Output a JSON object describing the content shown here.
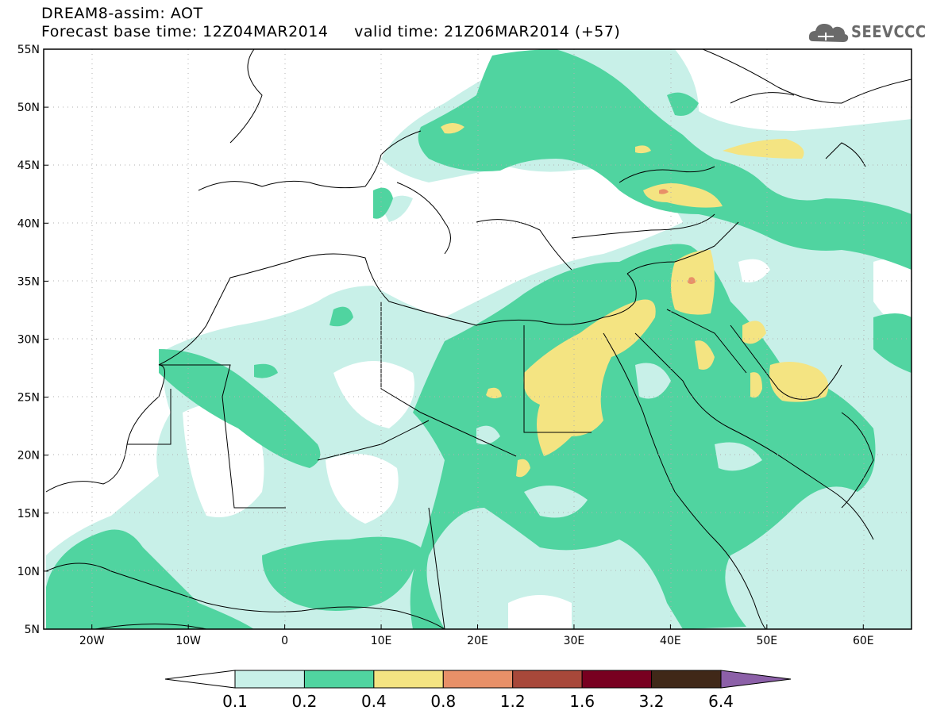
{
  "header": {
    "title": "DREAM8-assim: AOT",
    "base_time_label": "Forecast base time: 12Z04MAR2014",
    "valid_time_label": "valid time: 21Z06MAR2014 (+57)"
  },
  "logo": {
    "text": "SEEVCCC",
    "icon": "cloud-icon"
  },
  "map": {
    "lat_labels": [
      "55N",
      "50N",
      "45N",
      "40N",
      "35N",
      "30N",
      "25N",
      "20N",
      "15N",
      "10N",
      "5N"
    ],
    "lon_labels": [
      "20W",
      "10W",
      "0",
      "10E",
      "20E",
      "30E",
      "40E",
      "50E",
      "60E"
    ],
    "lat_range": [
      5,
      55
    ],
    "lon_range": [
      -25,
      65
    ],
    "grid": "dotted"
  },
  "colorbar": {
    "labels": [
      "0.1",
      "0.2",
      "0.4",
      "0.8",
      "1.2",
      "1.6",
      "3.2",
      "6.4"
    ],
    "colors": [
      "#ffffff",
      "#c8f0e8",
      "#50d4a0",
      "#f4e482",
      "#e89068",
      "#a8483a",
      "#780020",
      "#402818",
      "#8c60a8"
    ]
  }
}
